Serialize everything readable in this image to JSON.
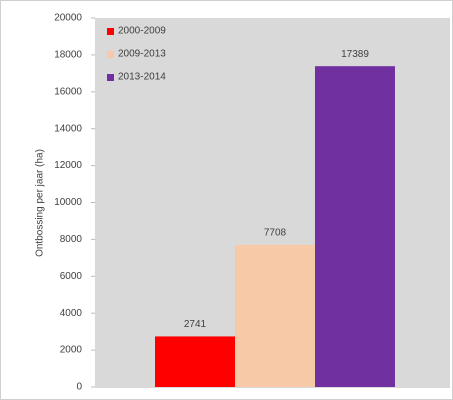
{
  "chart_data": {
    "type": "bar",
    "y_label": "Ontbossing per jaar (ha)",
    "series": [
      {
        "name": "2000-2009",
        "color": "#ff0000",
        "values": [
          2741
        ]
      },
      {
        "name": "2009-2013",
        "color": "#f8c9a6",
        "values": [
          7708
        ]
      },
      {
        "name": "2013-2014",
        "color": "#7030a0",
        "values": [
          17389
        ]
      }
    ],
    "ylim": [
      0,
      20000
    ],
    "yticks": [
      0,
      2000,
      4000,
      6000,
      8000,
      10000,
      12000,
      14000,
      16000,
      18000,
      20000
    ],
    "legend": "top-left"
  }
}
